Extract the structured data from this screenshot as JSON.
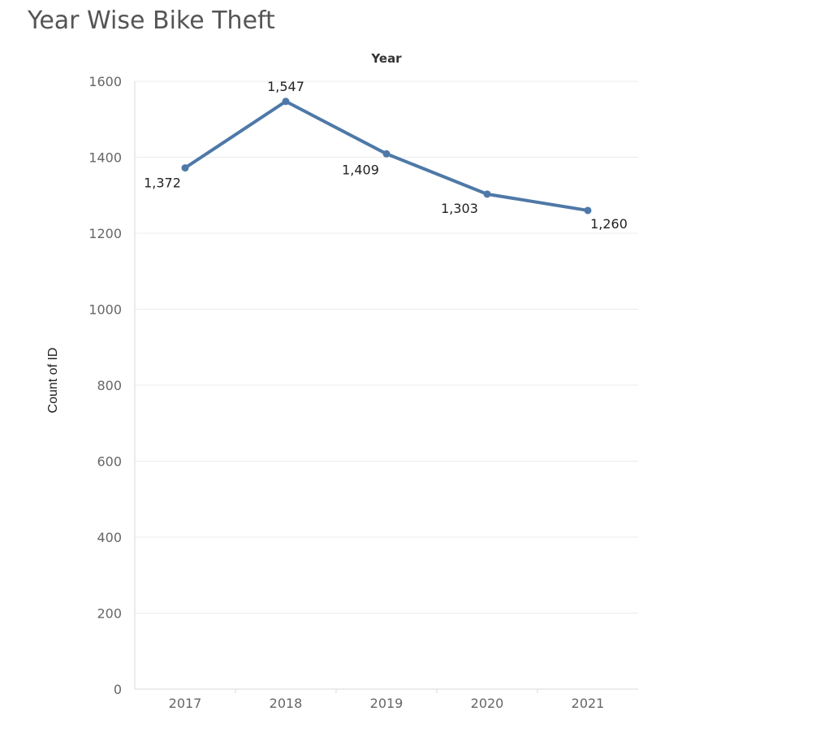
{
  "chart_data": {
    "type": "line",
    "title": "Year Wise Bike Theft",
    "header": "Year",
    "ylabel": "Count of ID",
    "categories": [
      "2017",
      "2018",
      "2019",
      "2020",
      "2021"
    ],
    "series": [
      {
        "values": [
          1372,
          1547,
          1409,
          1303,
          1260
        ]
      }
    ],
    "data_labels": [
      "1,372",
      "1,547",
      "1,409",
      "1,303",
      "1,260"
    ],
    "y_ticks": [
      "0",
      "200",
      "400",
      "600",
      "800",
      "1000",
      "1200",
      "1400",
      "1600"
    ],
    "ylim": [
      0,
      1600
    ],
    "grid": true,
    "colors": {
      "line": "#4e79a7",
      "grid": "#ececec",
      "axis": "#d9d9d9"
    }
  }
}
